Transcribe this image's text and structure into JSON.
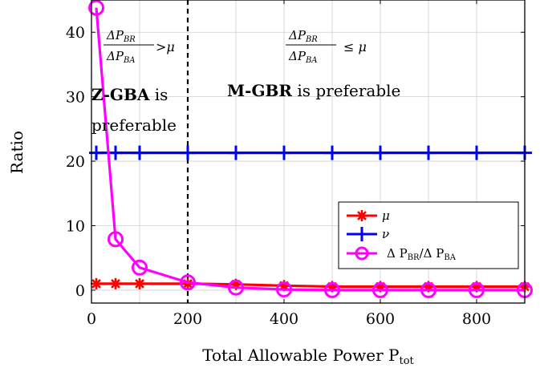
{
  "chart_data": {
    "type": "line",
    "xlabel": "Total Allowable Power P",
    "xlabel_sub": "tot",
    "ylabel": "Ratio",
    "xlim": [
      0,
      900
    ],
    "ylim": [
      -2,
      45
    ],
    "xticks": [
      0,
      200,
      400,
      600,
      800
    ],
    "yticks": [
      0,
      10,
      20,
      30,
      40
    ],
    "grid": true,
    "legend_position": "lower-right",
    "x": [
      10,
      50,
      100,
      200,
      300,
      400,
      500,
      600,
      700,
      800,
      900
    ],
    "series": [
      {
        "name": "μ",
        "color": "#ff0000",
        "marker": "asterisk",
        "values": [
          1.0,
          1.0,
          1.0,
          1.0,
          0.9,
          0.7,
          0.55,
          0.55,
          0.55,
          0.55,
          0.55
        ]
      },
      {
        "name": "ν",
        "color": "#0000ff",
        "marker": "plus",
        "values": [
          21.3,
          21.3,
          21.3,
          21.3,
          21.3,
          21.3,
          21.3,
          21.3,
          21.3,
          21.3,
          21.3
        ]
      },
      {
        "name": "Δ P_BR/Δ P_BA",
        "color": "#ff00ff",
        "marker": "circle",
        "values": [
          43.8,
          7.9,
          3.5,
          1.2,
          0.4,
          0.1,
          0.0,
          0.0,
          0.0,
          0.0,
          0.0
        ]
      }
    ],
    "legend_labels": {
      "mu": "μ",
      "nu": "ν",
      "ratio_delta1": "Δ P",
      "ratio_sub1": "BR",
      "ratio_mid": "/Δ P",
      "ratio_sub2": "BA"
    },
    "divider": {
      "x": 200,
      "style": "dashed",
      "color": "#000000"
    },
    "annotations": {
      "left_numerator": "ΔP",
      "left_numerator_sub": "BR",
      "left_denominator": "ΔP",
      "left_denominator_sub": "BA",
      "left_relation": ">μ",
      "right_numerator": "ΔP",
      "right_numerator_sub": "BR",
      "right_denominator": "ΔP",
      "right_denominator_sub": "BA",
      "right_relation": "≤ μ",
      "left_bold": "Z-GBA",
      "left_rest_line1": " is",
      "left_line2": "preferable",
      "right_bold": "M-GBR",
      "right_rest": " is preferable"
    }
  }
}
